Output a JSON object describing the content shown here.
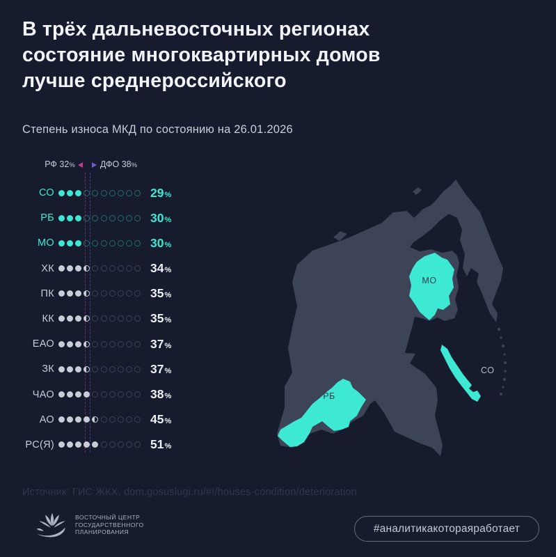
{
  "header": {
    "title_lines": [
      "В трёх дальневосточных регионах",
      "состояние многоквартирных домов",
      "лучше среднероссийского"
    ],
    "subtitle": "Степень износа МКД по состоянию на 26.01.2026"
  },
  "chart_data": {
    "type": "dot-strip",
    "title": "Степень износа МКД по состоянию на 26.01.2026",
    "unit": "%",
    "dots_per_row": 10,
    "percent_per_dot": 10,
    "xlim": [
      0,
      100
    ],
    "categories": [
      "СО",
      "РБ",
      "МО",
      "ХК",
      "ПК",
      "КК",
      "ЕАО",
      "ЗК",
      "ЧАО",
      "АО",
      "РС(Я)"
    ],
    "values": [
      29,
      30,
      30,
      34,
      35,
      35,
      37,
      37,
      38,
      45,
      51
    ],
    "highlighted_categories": [
      "СО",
      "РБ",
      "МО"
    ],
    "reference_lines": [
      {
        "label": "РФ",
        "value": 32,
        "color": "#c93a90",
        "arrow": "left"
      },
      {
        "label": "ДФО",
        "value": 38,
        "color": "#6f5ad6",
        "arrow": "right"
      }
    ]
  },
  "map": {
    "land_color": "#3d4457",
    "highlight_color": "#3de9d3",
    "regions": [
      {
        "code": "МО",
        "highlighted": true
      },
      {
        "code": "СО",
        "highlighted": true
      },
      {
        "code": "РБ",
        "highlighted": true
      }
    ]
  },
  "footer": {
    "source": "Источник: ГИС ЖКХ, dom.gosuslugi.ru/#!/houses-condition/deterioration",
    "logo_lines": [
      "ВОСТОЧНЫЙ ЦЕНТР",
      "ГОСУДАРСТВЕННОГО",
      "ПЛАНИРОВАНИЯ"
    ],
    "hashtag": "#аналитикакотораяработает"
  },
  "colors": {
    "background": "#161b2d",
    "accent_teal": "#3de9d3",
    "rf_line_pink": "#c93a90",
    "dfo_line_purple": "#6f5ad6",
    "map_land": "#3d4457"
  }
}
